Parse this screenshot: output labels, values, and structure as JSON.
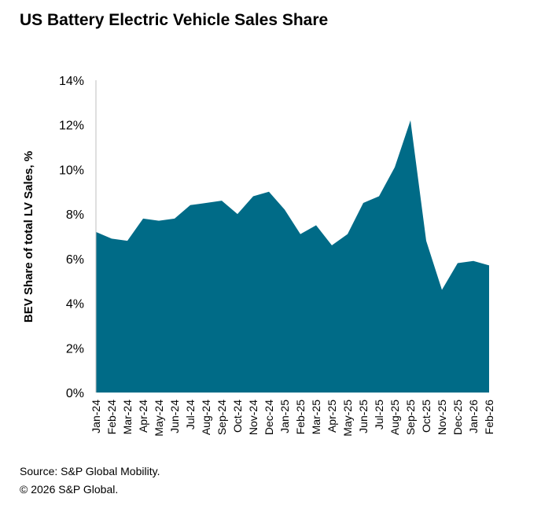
{
  "chart_data": {
    "type": "area",
    "title": "US Battery Electric Vehicle Sales Share",
    "ylabel": "BEV Share of total LV Sales, %",
    "xlabel": "",
    "ylim": [
      0,
      14
    ],
    "yticks": [
      0,
      2,
      4,
      6,
      8,
      10,
      12,
      14
    ],
    "ytick_labels": [
      "0%",
      "2%",
      "4%",
      "6%",
      "8%",
      "10%",
      "12%",
      "14%"
    ],
    "grid": false,
    "color": "#006B87",
    "categories": [
      "Jan-24",
      "Feb-24",
      "Mar-24",
      "Apr-24",
      "May-24",
      "Jun-24",
      "Jul-24",
      "Aug-24",
      "Sep-24",
      "Oct-24",
      "Nov-24",
      "Dec-24",
      "Jan-25",
      "Feb-25",
      "Mar-25",
      "Apr-25",
      "May-25",
      "Jun-25",
      "Jul-25",
      "Aug-25",
      "Sep-25",
      "Oct-25",
      "Nov-25",
      "Dec-25",
      "Jan-26",
      "Feb-26"
    ],
    "values": [
      7.2,
      6.9,
      6.8,
      7.8,
      7.7,
      7.8,
      8.4,
      8.5,
      8.6,
      8.0,
      8.8,
      9.0,
      8.2,
      7.1,
      7.5,
      6.6,
      7.1,
      8.5,
      8.8,
      10.1,
      12.2,
      6.8,
      4.6,
      5.8,
      5.9,
      5.7
    ]
  },
  "footer": {
    "source": "Source: S&P Global Mobility.",
    "copyright": "© 2026 S&P Global."
  }
}
